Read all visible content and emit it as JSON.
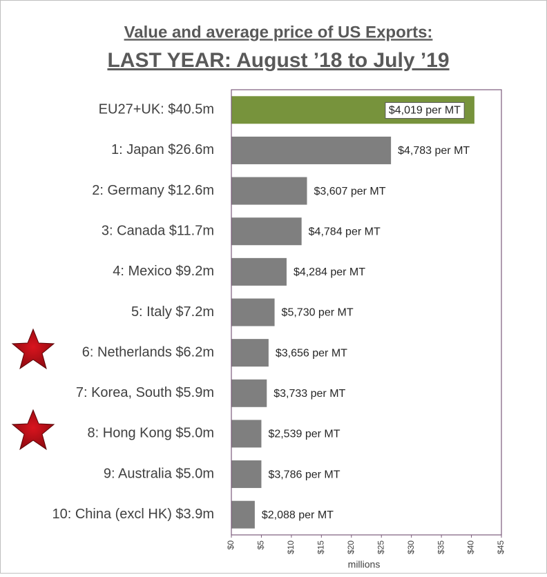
{
  "chart_data": {
    "type": "hbar",
    "title": "Value and average price of US Exports:",
    "subtitle": "LAST YEAR: August ’18 to July ’19",
    "categories": [
      "EU27+UK: $40.5m",
      "1: Japan $26.6m",
      "2: Germany $12.6m",
      "3: Canada $11.7m",
      "4: Mexico $9.2m",
      "5: Italy $7.2m",
      "6: Netherlands $6.2m",
      "7: Korea, South $5.9m",
      "8: Hong Kong $5.0m",
      "9: Australia $5.0m",
      "10: China (excl HK) $3.9m"
    ],
    "values": [
      40.5,
      26.6,
      12.6,
      11.7,
      9.2,
      7.2,
      6.2,
      5.9,
      5.0,
      5.0,
      3.9
    ],
    "colors": [
      "#77933c",
      "#7f7f7f",
      "#7f7f7f",
      "#7f7f7f",
      "#7f7f7f",
      "#7f7f7f",
      "#7f7f7f",
      "#7f7f7f",
      "#7f7f7f",
      "#7f7f7f",
      "#7f7f7f"
    ],
    "price_labels": [
      "$4,019 per MT",
      "$4,783 per MT",
      "$3,607 per MT",
      "$4,784 per MT",
      "$4,284 per MT",
      "$5,730 per MT",
      "$3,656 per MT",
      "$3,733 per MT",
      "$2,539 per MT",
      "$3,786 per MT",
      "$2,088 per MT"
    ],
    "xlabel": "millions",
    "xlim": [
      0,
      45
    ],
    "xticks": [
      {
        "value": 0,
        "label": "$0"
      },
      {
        "value": 5,
        "label": "$5"
      },
      {
        "value": 10,
        "label": "$10"
      },
      {
        "value": 15,
        "label": "$15"
      },
      {
        "value": 20,
        "label": "$20"
      },
      {
        "value": 25,
        "label": "$25"
      },
      {
        "value": 30,
        "label": "$30"
      },
      {
        "value": 35,
        "label": "$35"
      },
      {
        "value": 40,
        "label": "$40"
      },
      {
        "value": 45,
        "label": "$45"
      }
    ]
  }
}
